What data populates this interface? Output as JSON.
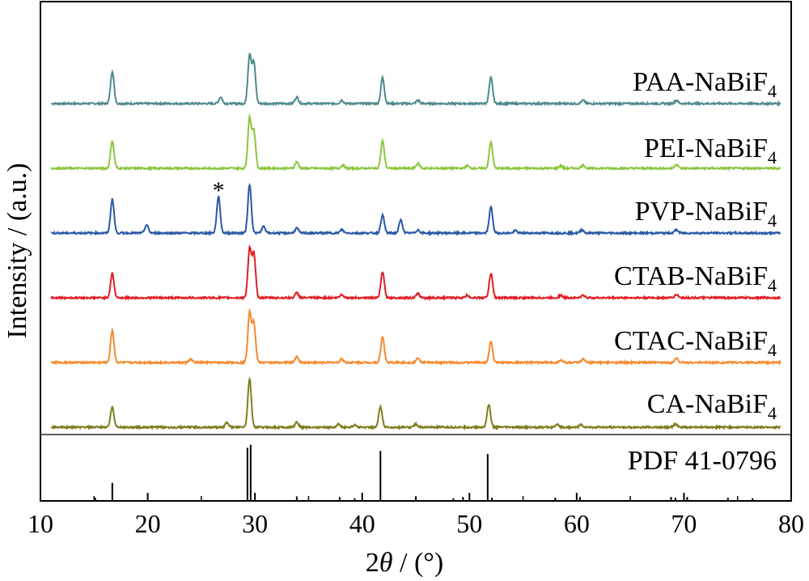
{
  "chart_data": {
    "type": "line",
    "xlabel_prefix": "2",
    "xlabel_var": "θ",
    "xlabel_suffix": " / (°)",
    "ylabel": "Intensity / (a.u.)",
    "xlim": [
      10,
      80
    ],
    "xticks": [
      "10",
      "20",
      "30",
      "40",
      "50",
      "60",
      "70",
      "80"
    ],
    "annotation": "*",
    "annotation_x": 26.6,
    "series": [
      {
        "name": "PAA-NaBiF",
        "sub": "4",
        "color": "#4d8a8e",
        "peaks": [
          [
            16.7,
            40
          ],
          [
            26.8,
            8
          ],
          [
            29.5,
            60
          ],
          [
            29.9,
            50
          ],
          [
            33.9,
            8
          ],
          [
            38.1,
            4
          ],
          [
            41.9,
            32
          ],
          [
            45.2,
            4
          ],
          [
            52.0,
            32
          ],
          [
            60.6,
            4
          ],
          [
            69.3,
            4
          ]
        ]
      },
      {
        "name": "PEI-NaBiF",
        "sub": "4",
        "color": "#8cc63f",
        "peaks": [
          [
            16.7,
            34
          ],
          [
            29.5,
            62
          ],
          [
            29.9,
            46
          ],
          [
            33.9,
            8
          ],
          [
            38.2,
            4
          ],
          [
            41.9,
            34
          ],
          [
            45.2,
            6
          ],
          [
            49.8,
            3
          ],
          [
            52.0,
            32
          ],
          [
            58.5,
            3
          ],
          [
            60.6,
            4
          ],
          [
            69.3,
            5
          ]
        ]
      },
      {
        "name": "PVP-NaBiF",
        "sub": "4",
        "color": "#2a58a6",
        "peaks": [
          [
            16.7,
            42
          ],
          [
            19.9,
            10
          ],
          [
            26.6,
            45
          ],
          [
            29.5,
            60
          ],
          [
            30.8,
            8
          ],
          [
            33.9,
            6
          ],
          [
            38.1,
            4
          ],
          [
            41.9,
            22
          ],
          [
            43.6,
            16
          ],
          [
            45.2,
            4
          ],
          [
            52.0,
            32
          ],
          [
            54.3,
            3
          ],
          [
            60.5,
            4
          ],
          [
            69.3,
            4
          ]
        ]
      },
      {
        "name": "CTAB-NaBiF",
        "sub": "4",
        "color": "#e21d24",
        "peaks": [
          [
            16.7,
            30
          ],
          [
            29.5,
            60
          ],
          [
            29.9,
            54
          ],
          [
            33.9,
            6
          ],
          [
            38.1,
            4
          ],
          [
            41.9,
            32
          ],
          [
            45.2,
            5
          ],
          [
            49.8,
            3
          ],
          [
            52.0,
            30
          ],
          [
            58.5,
            3
          ],
          [
            60.6,
            3
          ],
          [
            69.3,
            4
          ]
        ]
      },
      {
        "name": "CTAC-NaBiF",
        "sub": "4",
        "color": "#f5892d",
        "peaks": [
          [
            16.7,
            40
          ],
          [
            24.0,
            4
          ],
          [
            29.5,
            62
          ],
          [
            29.9,
            48
          ],
          [
            33.9,
            7
          ],
          [
            38.1,
            4
          ],
          [
            41.9,
            32
          ],
          [
            45.2,
            5
          ],
          [
            52.0,
            26
          ],
          [
            58.5,
            3
          ],
          [
            60.6,
            4
          ],
          [
            69.3,
            5
          ]
        ]
      },
      {
        "name": "CA-NaBiF",
        "sub": "4",
        "color": "#7d7d1e",
        "peaks": [
          [
            16.7,
            25
          ],
          [
            27.4,
            6
          ],
          [
            29.5,
            60
          ],
          [
            33.9,
            6
          ],
          [
            37.8,
            4
          ],
          [
            39.3,
            3
          ],
          [
            41.7,
            25
          ],
          [
            45.0,
            4
          ],
          [
            51.8,
            28
          ],
          [
            58.2,
            3
          ],
          [
            60.4,
            3
          ],
          [
            69.2,
            4
          ]
        ]
      }
    ],
    "reference": {
      "name": "PDF 41-0796",
      "lines": [
        [
          16.7,
          28
        ],
        [
          29.3,
          85
        ],
        [
          29.6,
          90
        ],
        [
          41.7,
          80
        ],
        [
          51.7,
          75
        ],
        [
          15.1,
          4
        ],
        [
          33.9,
          6
        ],
        [
          37.9,
          5
        ],
        [
          39.3,
          3
        ],
        [
          45.0,
          5
        ],
        [
          48.5,
          3
        ],
        [
          49.4,
          5
        ],
        [
          52.1,
          4
        ],
        [
          58.0,
          4
        ],
        [
          60.3,
          5
        ],
        [
          68.8,
          5
        ],
        [
          69.2,
          4
        ],
        [
          70.3,
          5
        ],
        [
          74.1,
          4
        ],
        [
          76.4,
          3
        ]
      ]
    }
  }
}
